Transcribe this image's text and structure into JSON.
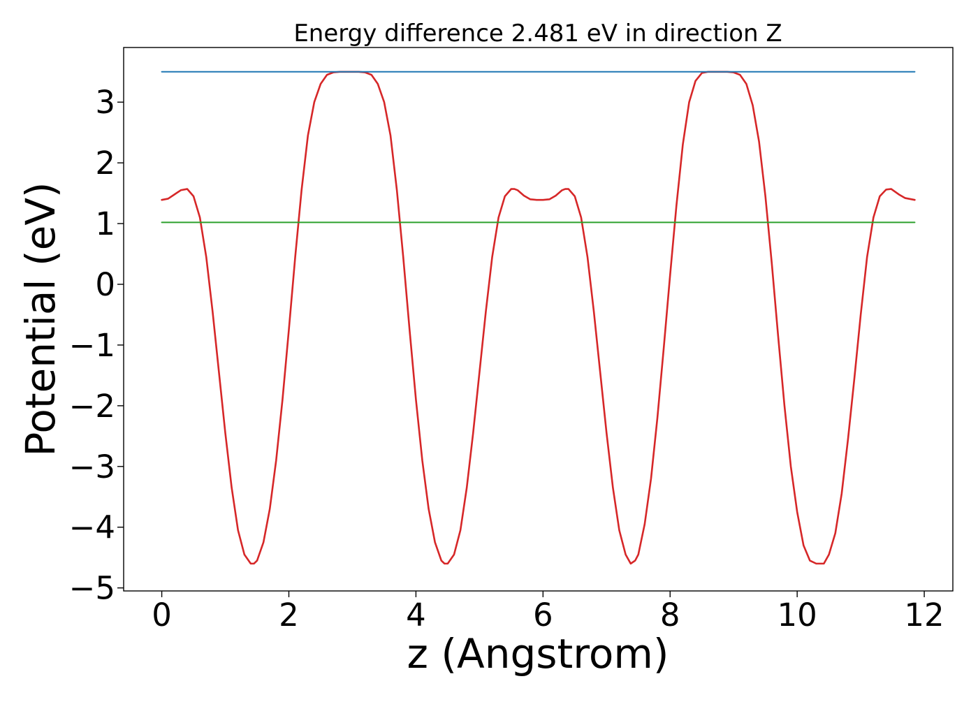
{
  "chart_data": {
    "type": "line",
    "title": "Energy difference 2.481 eV in direction Z",
    "xlabel": "z (Angstrom)",
    "ylabel": "Potential (eV)",
    "xlim": [
      -0.6,
      12.45
    ],
    "ylim": [
      -5.05,
      3.9
    ],
    "xticks": [
      0,
      2,
      4,
      6,
      8,
      10,
      12
    ],
    "xtick_labels": [
      "0",
      "2",
      "4",
      "6",
      "8",
      "10",
      "12"
    ],
    "yticks": [
      -5,
      -4,
      -3,
      -2,
      -1,
      0,
      1,
      2,
      3
    ],
    "ytick_labels": [
      "−5",
      "−4",
      "−3",
      "−2",
      "−1",
      "0",
      "1",
      "2",
      "3"
    ],
    "grid": false,
    "legend": "none",
    "series": [
      {
        "color": "#d62728",
        "style": "solid",
        "x": [
          0.0,
          0.1,
          0.2,
          0.3,
          0.4,
          0.5,
          0.6,
          0.7,
          0.8,
          0.9,
          1.0,
          1.1,
          1.2,
          1.3,
          1.4,
          1.45,
          1.5,
          1.6,
          1.7,
          1.8,
          1.9,
          2.0,
          2.1,
          2.2,
          2.3,
          2.4,
          2.5,
          2.6,
          2.7,
          2.8,
          2.9,
          3.0,
          3.1,
          3.2,
          3.3,
          3.4,
          3.5,
          3.6,
          3.7,
          3.8,
          3.9,
          4.0,
          4.1,
          4.2,
          4.3,
          4.4,
          4.45,
          4.5,
          4.6,
          4.7,
          4.8,
          4.9,
          5.0,
          5.1,
          5.2,
          5.3,
          5.4,
          5.5,
          5.55,
          5.6,
          5.7,
          5.8,
          5.9,
          6.0,
          6.1,
          6.2,
          6.3,
          6.35,
          6.4,
          6.5,
          6.6,
          6.7,
          6.8,
          6.9,
          7.0,
          7.1,
          7.2,
          7.3,
          7.38,
          7.45,
          7.5,
          7.6,
          7.7,
          7.8,
          7.9,
          8.0,
          8.1,
          8.2,
          8.3,
          8.4,
          8.5,
          8.6,
          8.7,
          8.8,
          8.9,
          9.0,
          9.1,
          9.2,
          9.3,
          9.4,
          9.5,
          9.6,
          9.7,
          9.8,
          9.9,
          10.0,
          10.1,
          10.2,
          10.3,
          10.42,
          10.5,
          10.6,
          10.7,
          10.8,
          10.9,
          11.0,
          11.1,
          11.2,
          11.3,
          11.4,
          11.48,
          11.6,
          11.7,
          11.85
        ],
        "y": [
          1.39,
          1.41,
          1.48,
          1.55,
          1.57,
          1.45,
          1.1,
          0.45,
          -0.45,
          -1.45,
          -2.45,
          -3.35,
          -4.05,
          -4.45,
          -4.6,
          -4.6,
          -4.55,
          -4.25,
          -3.7,
          -2.9,
          -1.9,
          -0.75,
          0.45,
          1.55,
          2.45,
          3.0,
          3.3,
          3.45,
          3.49,
          3.5,
          3.5,
          3.5,
          3.5,
          3.49,
          3.45,
          3.3,
          3.0,
          2.45,
          1.55,
          0.45,
          -0.75,
          -1.9,
          -2.9,
          -3.7,
          -4.25,
          -4.55,
          -4.6,
          -4.6,
          -4.45,
          -4.05,
          -3.35,
          -2.45,
          -1.45,
          -0.45,
          0.45,
          1.1,
          1.45,
          1.57,
          1.57,
          1.55,
          1.46,
          1.4,
          1.39,
          1.39,
          1.4,
          1.46,
          1.55,
          1.57,
          1.57,
          1.45,
          1.1,
          0.45,
          -0.45,
          -1.45,
          -2.45,
          -3.35,
          -4.05,
          -4.45,
          -4.6,
          -4.55,
          -4.45,
          -3.95,
          -3.2,
          -2.2,
          -1.05,
          0.15,
          1.3,
          2.3,
          3.0,
          3.35,
          3.48,
          3.5,
          3.5,
          3.5,
          3.5,
          3.49,
          3.45,
          3.3,
          2.95,
          2.35,
          1.45,
          0.35,
          -0.85,
          -2.0,
          -3.0,
          -3.75,
          -4.3,
          -4.55,
          -4.6,
          -4.6,
          -4.45,
          -4.1,
          -3.45,
          -2.55,
          -1.55,
          -0.5,
          0.45,
          1.1,
          1.45,
          1.56,
          1.57,
          1.48,
          1.42,
          1.39
        ]
      },
      {
        "color": "#1f77b4",
        "style": "solid",
        "x": [
          0.0,
          11.85
        ],
        "y": [
          3.5,
          3.5
        ]
      },
      {
        "color": "#2ca02c",
        "style": "solid",
        "x": [
          0.0,
          11.85
        ],
        "y": [
          1.02,
          1.02
        ]
      }
    ]
  }
}
